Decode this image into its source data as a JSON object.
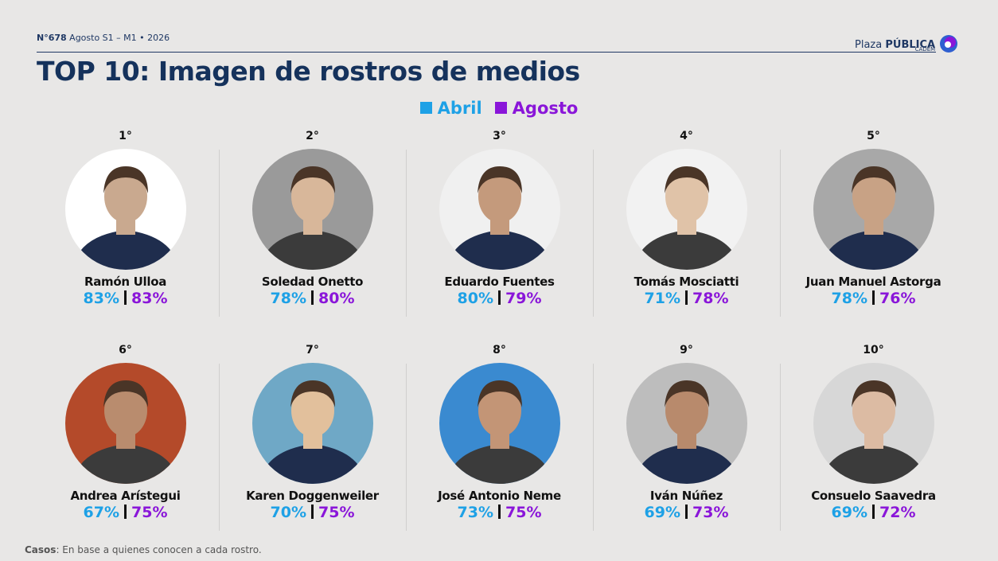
{
  "header": {
    "issue": "N°678",
    "period": "Agosto S1 – M1 • 2026",
    "title": "TOP 10: Imagen de rostros de medios"
  },
  "logo": {
    "plaza": "Plaza",
    "publica": "PÚBLICA",
    "cadem": "CADEM"
  },
  "legend": [
    {
      "label": "Abril",
      "color": "#1ea1e6"
    },
    {
      "label": "Agosto",
      "color": "#8a16d9"
    }
  ],
  "people": [
    {
      "rank": "1°",
      "name": "Ramón Ulloa",
      "abril": "83%",
      "agosto": "83%"
    },
    {
      "rank": "2°",
      "name": "Soledad Onetto",
      "abril": "78%",
      "agosto": "80%"
    },
    {
      "rank": "3°",
      "name": "Eduardo Fuentes",
      "abril": "80%",
      "agosto": "79%"
    },
    {
      "rank": "4°",
      "name": "Tomás Mosciatti",
      "abril": "71%",
      "agosto": "78%"
    },
    {
      "rank": "5°",
      "name": "Juan Manuel Astorga",
      "abril": "78%",
      "agosto": "76%"
    },
    {
      "rank": "6°",
      "name": "Andrea Arístegui",
      "abril": "67%",
      "agosto": "75%"
    },
    {
      "rank": "7°",
      "name": "Karen Doggenweiler",
      "abril": "70%",
      "agosto": "75%"
    },
    {
      "rank": "8°",
      "name": "José Antonio Neme",
      "abril": "73%",
      "agosto": "75%"
    },
    {
      "rank": "9°",
      "name": "Iván Núñez",
      "abril": "69%",
      "agosto": "73%"
    },
    {
      "rank": "10°",
      "name": "Consuelo Saavedra",
      "abril": "69%",
      "agosto": "72%"
    }
  ],
  "footer": {
    "label": "Casos",
    "text": ": En base a quienes conocen a cada rostro."
  }
}
